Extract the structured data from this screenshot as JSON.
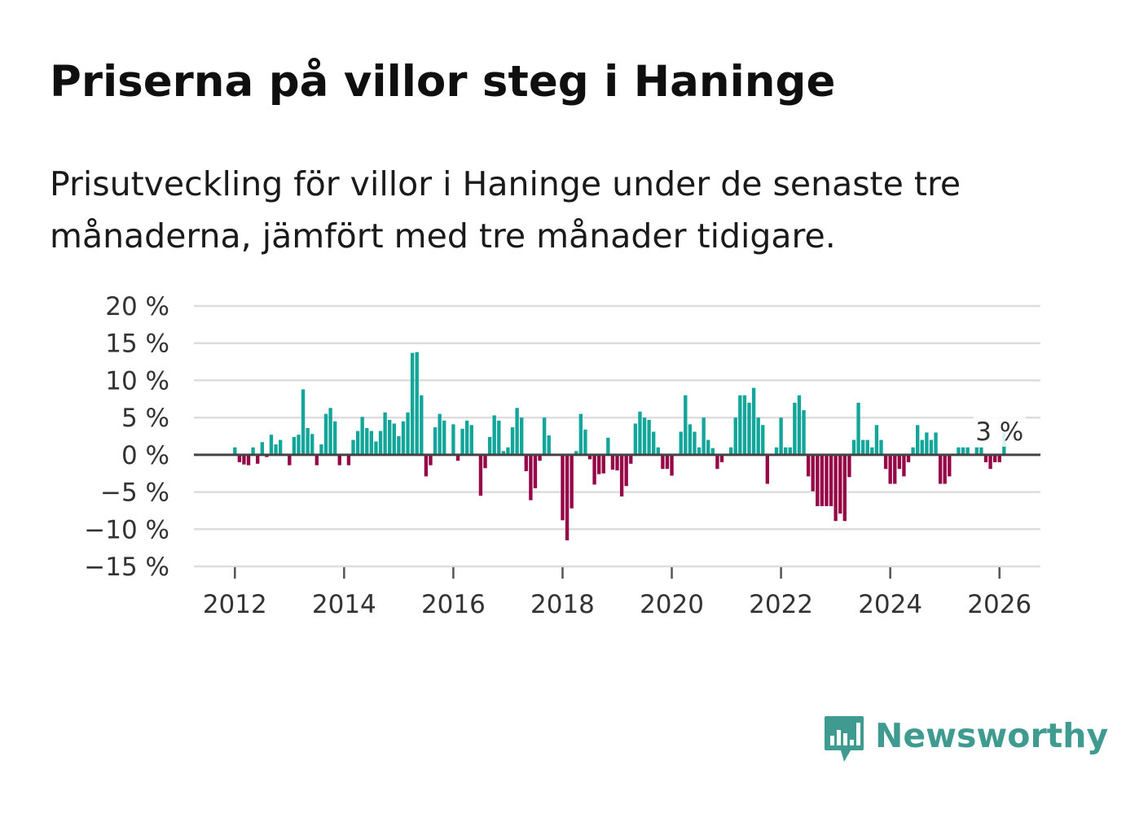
{
  "title": "Priserna på villor steg i Haninge",
  "subtitle": "Prisutveckling för villor i Haninge under de senaste tre månaderna, jämfört med tre månader tidigare.",
  "colors": {
    "positive": "#12a59a",
    "negative": "#960747",
    "grid": "#dddddd",
    "zero_line": "#444444",
    "brand": "#3f9a90"
  },
  "brand": {
    "name": "Newsworthy",
    "icon": "newsworthy-logo-icon"
  },
  "chart_data": {
    "type": "bar",
    "title": "Priserna på villor steg i Haninge",
    "ylabel": "",
    "xlabel": "",
    "ylim": [
      -15,
      20
    ],
    "y_ticks": [
      20,
      15,
      10,
      5,
      0,
      -5,
      -10,
      -15
    ],
    "y_tick_labels": [
      "20 %",
      "15 %",
      "10 %",
      "5 %",
      "0 %",
      "−5 %",
      "−10 %",
      "−15 %"
    ],
    "x_ticks": [
      2012,
      2014,
      2016,
      2018,
      2020,
      2022,
      2024,
      2026
    ],
    "x_tick_labels": [
      "2012",
      "2014",
      "2016",
      "2018",
      "2020",
      "2022",
      "2024",
      "2026"
    ],
    "x_range": [
      2011.25,
      2026.75
    ],
    "start": {
      "year": 2012,
      "month": 1
    },
    "end": {
      "year": 2026,
      "month": 1
    },
    "annotation": {
      "label": "3 %",
      "index": 168
    },
    "values": [
      1,
      -1,
      -1.3,
      -1.4,
      1,
      -1.2,
      1.7,
      -0.3,
      2.7,
      1.4,
      2,
      null,
      -1.4,
      2.4,
      2.7,
      8.8,
      3.6,
      2.8,
      -1.4,
      1.4,
      5.5,
      6.3,
      4.5,
      -1.4,
      null,
      -1.4,
      2,
      3.2,
      5.1,
      3.6,
      3.2,
      1.8,
      3.2,
      5.7,
      4.7,
      4.2,
      2.5,
      4.5,
      5.7,
      13.7,
      13.8,
      8,
      -2.9,
      -1.4,
      3.7,
      5.5,
      4.6,
      null,
      4.1,
      -0.8,
      3.5,
      4.6,
      4,
      null,
      -5.5,
      -1.8,
      2.4,
      5.3,
      4.6,
      0.5,
      1,
      3.7,
      6.3,
      5,
      -2.2,
      -6.1,
      -4.5,
      -0.8,
      5,
      2.6,
      null,
      null,
      -8.8,
      -11.5,
      -7.2,
      0.5,
      5.5,
      3.4,
      -0.6,
      -4,
      -2.6,
      -2.5,
      2.3,
      -2,
      -2.1,
      -5.6,
      -4.2,
      -1.2,
      4.2,
      5.8,
      5,
      4.7,
      3.1,
      1,
      -1.9,
      -1.9,
      -2.8,
      null,
      3.1,
      8,
      4.1,
      3.1,
      1,
      5,
      2,
      0.9,
      -1.9,
      -1,
      null,
      1,
      5,
      8,
      8,
      7,
      9,
      5,
      4,
      -3.9,
      null,
      1,
      5,
      1,
      1,
      7,
      8,
      6,
      -2.9,
      -4.9,
      -6.9,
      -6.9,
      -6.9,
      -6.9,
      -8.9,
      -7.9,
      -8.9,
      -3,
      2,
      7,
      2,
      2,
      1,
      4,
      2,
      -1.9,
      -3.9,
      -3.9,
      -1.9,
      -2.9,
      -1,
      1,
      4,
      2,
      3,
      2,
      3,
      -3.9,
      -3.9,
      -2.9,
      null,
      1,
      1,
      1,
      null,
      1,
      1,
      -1,
      -1.9,
      -1,
      -1,
      3
    ]
  }
}
